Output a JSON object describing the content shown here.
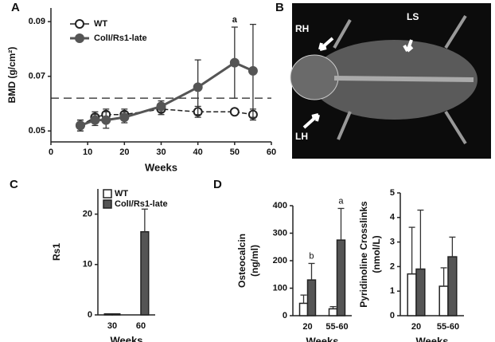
{
  "panel_b": {
    "label": "B",
    "annotations": [
      "RH",
      "LS",
      "LH"
    ]
  },
  "chart_data": [
    {
      "panel": "A",
      "type": "line",
      "xlabel": "Weeks",
      "ylabel": "BMD (g/cm²)",
      "x": [
        8,
        12,
        15,
        20,
        30,
        40,
        50,
        55
      ],
      "xlim": [
        0,
        60
      ],
      "xticks": [
        0,
        10,
        20,
        30,
        40,
        50,
        60
      ],
      "ylim": [
        0.046,
        0.095
      ],
      "yticks": [
        0.05,
        0.07,
        0.09
      ],
      "reference_line": 0.062,
      "series": [
        {
          "name": "WT",
          "color": "#222222",
          "marker": "open",
          "values": [
            0.052,
            0.055,
            0.056,
            0.056,
            0.058,
            0.057,
            0.057,
            0.056
          ],
          "errors": [
            0.002,
            0.002,
            0.002,
            0.002,
            0.002,
            0.002,
            0.001,
            0.002
          ]
        },
        {
          "name": "ColI/Rs1-late",
          "color": "#555555",
          "marker": "filled",
          "values": [
            0.052,
            0.054,
            0.054,
            0.055,
            0.059,
            0.066,
            0.075,
            0.072
          ],
          "errors": [
            0.002,
            0.002,
            0.003,
            0.002,
            0.002,
            0.01,
            0.013,
            0.017
          ]
        }
      ],
      "annotations": [
        {
          "text": "a",
          "x": 50
        }
      ]
    },
    {
      "panel": "C",
      "type": "bar",
      "xlabel": "Weeks",
      "ylabel": "Rs1",
      "categories": [
        "30",
        "60"
      ],
      "ylim": [
        0,
        25
      ],
      "yticks": [
        0,
        10,
        20
      ],
      "legend": true,
      "series": [
        {
          "name": "WT",
          "color": "#ffffff",
          "values": [
            0.2,
            0
          ],
          "errors": [
            null,
            null
          ]
        },
        {
          "name": "ColI/Rs1-late",
          "color": "#555555",
          "values": [
            0.2,
            16.5
          ],
          "errors": [
            null,
            4.5
          ]
        }
      ]
    },
    {
      "panel": "D",
      "type": "bar",
      "xlabel": "Weeks",
      "ylabel": [
        "Osteocalcin",
        "(ng/ml)"
      ],
      "categories": [
        "20",
        "55-60"
      ],
      "ylim": [
        0,
        400
      ],
      "yticks": [
        0,
        100,
        200,
        300,
        400
      ],
      "series": [
        {
          "color": "#ffffff",
          "values": [
            45,
            25
          ],
          "errors": [
            30,
            8
          ]
        },
        {
          "color": "#555555",
          "values": [
            130,
            275
          ],
          "errors": [
            60,
            115
          ]
        }
      ],
      "annotations": [
        {
          "text": "b",
          "x": "20"
        },
        {
          "text": "a",
          "x": "55-60"
        }
      ]
    },
    {
      "type": "bar",
      "xlabel": "Weeks",
      "ylabel": [
        "Pyridinoline Crosslinks",
        "(nmol/L)"
      ],
      "categories": [
        "20",
        "55-60"
      ],
      "ylim": [
        0,
        5
      ],
      "yticks": [
        0,
        1,
        2,
        3,
        4,
        5
      ],
      "series": [
        {
          "color": "#ffffff",
          "values": [
            1.7,
            1.2
          ],
          "errors": [
            1.9,
            0.75
          ]
        },
        {
          "color": "#555555",
          "values": [
            1.9,
            2.4
          ],
          "errors": [
            2.4,
            0.8
          ]
        }
      ]
    }
  ]
}
